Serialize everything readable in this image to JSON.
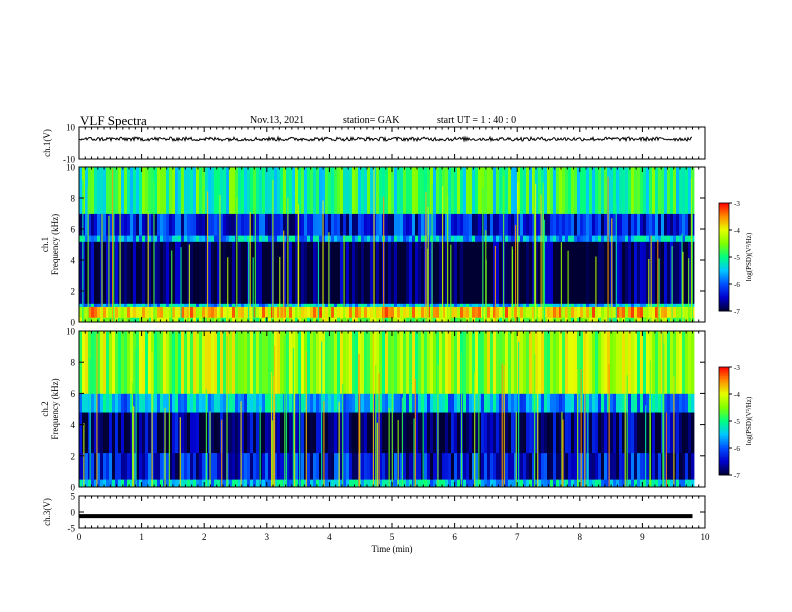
{
  "header": {
    "title": "VLF Spectra",
    "date": "Nov.13, 2021",
    "station": "station= GAK",
    "start": "start  UT =   1 : 40 : 0"
  },
  "chart_data": [
    {
      "type": "line",
      "name": "ch.1 waveform",
      "ylabel": "ch.1(V)",
      "xlim": [
        0,
        10
      ],
      "ylim": [
        -10,
        10
      ],
      "yticks": [
        "10",
        "-10"
      ],
      "approx_level": 2.5,
      "approx_amplitude": 1.2,
      "data_end_min": 9.8,
      "color": "#000000"
    },
    {
      "type": "heatmap",
      "name": "ch.1 spectrogram",
      "ylabel_channel": "ch.1",
      "ylabel": "Frequency (kHz)",
      "xlim": [
        0,
        10
      ],
      "ylim": [
        0,
        10
      ],
      "yticks": [
        "0",
        "2",
        "4",
        "6",
        "8",
        "10"
      ],
      "data_end_min": 9.8,
      "bands_khz": [
        {
          "from": 0,
          "to": 0.3,
          "level": -4.5
        },
        {
          "from": 0.3,
          "to": 1.0,
          "level": -3.8
        },
        {
          "from": 1.0,
          "to": 1.2,
          "level": -5.5
        },
        {
          "from": 1.2,
          "to": 5.2,
          "level": -7.0
        },
        {
          "from": 5.2,
          "to": 5.6,
          "level": -5.6
        },
        {
          "from": 5.6,
          "to": 7.0,
          "level": -6.3
        },
        {
          "from": 7.0,
          "to": 10.0,
          "level": -5.0
        }
      ],
      "colorbar": {
        "label": "log(PSD)(V²/Hz)",
        "min": -7,
        "max": -3,
        "ticks": [
          "-3",
          "-4",
          "-5",
          "-6",
          "-7"
        ]
      }
    },
    {
      "type": "heatmap",
      "name": "ch.2 spectrogram",
      "ylabel_channel": "ch.2",
      "ylabel": "Frequency (kHz)",
      "xlim": [
        0,
        10
      ],
      "ylim": [
        0,
        10
      ],
      "yticks": [
        "0",
        "2",
        "4",
        "6",
        "8",
        "10"
      ],
      "data_end_min": 9.8,
      "bands_khz": [
        {
          "from": 0,
          "to": 0.5,
          "level": -5.5
        },
        {
          "from": 0.5,
          "to": 2.2,
          "level": -6.4
        },
        {
          "from": 2.2,
          "to": 4.8,
          "level": -6.8
        },
        {
          "from": 4.8,
          "to": 6.0,
          "level": -5.6
        },
        {
          "from": 6.0,
          "to": 10.0,
          "level": -4.4
        }
      ],
      "colorbar": {
        "label": "log(PSD)(V²/Hz)",
        "min": -7,
        "max": -3,
        "ticks": [
          "-3",
          "-4",
          "-5",
          "-6",
          "-7"
        ]
      }
    },
    {
      "type": "line",
      "name": "ch.3 waveform",
      "ylabel": "ch.3(V)",
      "xlim": [
        0,
        10
      ],
      "ylim": [
        -5,
        5
      ],
      "yticks": [
        "5",
        "0",
        "-5"
      ],
      "approx_level": -1.3,
      "data_end_min": 9.8,
      "color": "#000000"
    }
  ],
  "xaxis": {
    "label": "Time  (min)",
    "ticks": [
      "0",
      "1",
      "2",
      "3",
      "4",
      "5",
      "6",
      "7",
      "8",
      "9",
      "10"
    ]
  },
  "colormap": [
    "#000033",
    "#0000cc",
    "#0050ff",
    "#00c8ff",
    "#00ff80",
    "#80ff00",
    "#e6ff00",
    "#ff8c00",
    "#ff0000"
  ]
}
